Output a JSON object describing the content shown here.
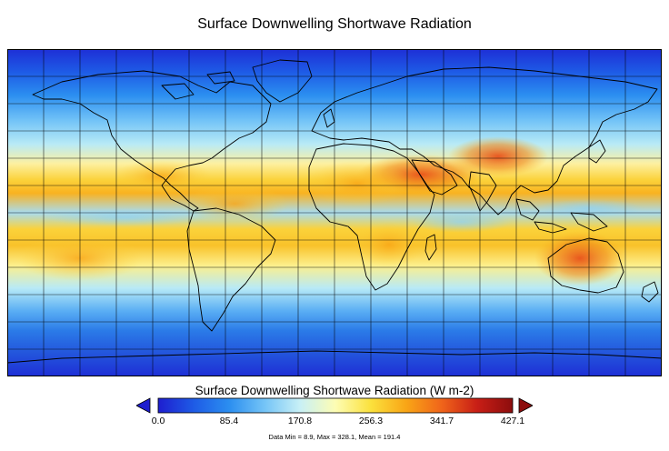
{
  "title": "Surface Downwelling Shortwave Radiation",
  "colorbar": {
    "title": "Surface Downwelling Shortwave Radiation (W m-2)",
    "min": 0.0,
    "max": 427.1,
    "ticks": [
      "0.0",
      "85.4",
      "170.8",
      "256.3",
      "341.7",
      "427.1"
    ],
    "stats": "Data Min = 8.9, Max = 328.1, Mean = 191.4",
    "colors": [
      "#1e1ecf",
      "#1e5be6",
      "#2b8ef0",
      "#74c4f7",
      "#c8f0f6",
      "#fdfdb4",
      "#fbe13c",
      "#f9a516",
      "#f0641a",
      "#c81e16",
      "#8c0d0d"
    ]
  },
  "map": {
    "projection": "equirectangular",
    "lon_range": [
      -180,
      180
    ],
    "lat_range": [
      -90,
      90
    ],
    "grid_spacing_lon_deg": 20,
    "grid_spacing_lat_deg": 15,
    "grid_color": "#000000",
    "coastline_color": "#000000"
  }
}
